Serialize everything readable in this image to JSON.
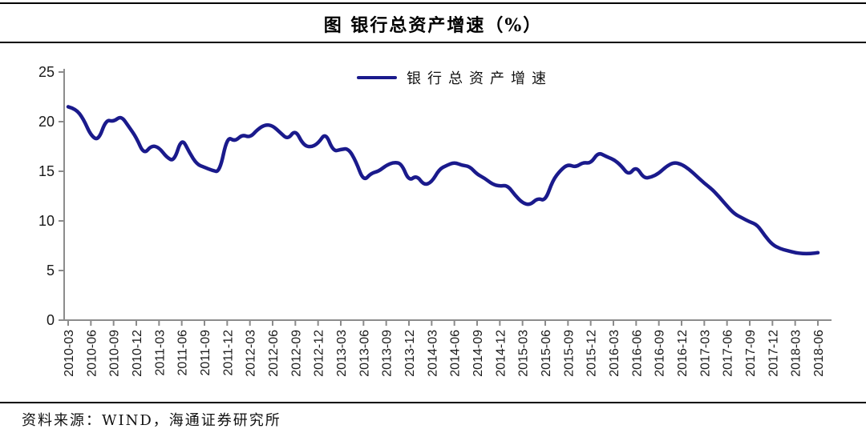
{
  "page": {
    "source_note": "资料来源：WIND，海通证券研究所"
  },
  "chart_data": {
    "type": "line",
    "title": "图 银行总资产增速（%）",
    "legend": [
      "银行总资产增速"
    ],
    "line_color": "#1a1a8c",
    "axis_color": "#8c8c8c",
    "label_color": "#1a1a1a",
    "ylim": [
      0,
      25
    ],
    "yticks": [
      0,
      5,
      10,
      15,
      20,
      25
    ],
    "grid": "off",
    "legend_position": "top-center",
    "x_tick_labels": [
      "2010-03",
      "2010-06",
      "2010-09",
      "2010-12",
      "2011-03",
      "2011-06",
      "2011-09",
      "2011-12",
      "2012-03",
      "2012-06",
      "2012-09",
      "2012-12",
      "2013-03",
      "2013-06",
      "2013-09",
      "2013-12",
      "2014-03",
      "2014-06",
      "2014-09",
      "2014-12",
      "2015-03",
      "2015-06",
      "2015-09",
      "2015-12",
      "2016-03",
      "2016-06",
      "2016-09",
      "2016-12",
      "2017-03",
      "2017-06",
      "2017-09",
      "2017-12",
      "2018-03",
      "2018-06"
    ],
    "x": [
      "2010-03",
      "2010-04",
      "2010-05",
      "2010-06",
      "2010-07",
      "2010-08",
      "2010-09",
      "2010-10",
      "2010-11",
      "2010-12",
      "2011-01",
      "2011-02",
      "2011-03",
      "2011-04",
      "2011-05",
      "2011-06",
      "2011-07",
      "2011-08",
      "2011-09",
      "2011-10",
      "2011-11",
      "2011-12",
      "2012-01",
      "2012-02",
      "2012-03",
      "2012-04",
      "2012-05",
      "2012-06",
      "2012-07",
      "2012-08",
      "2012-09",
      "2012-10",
      "2012-11",
      "2012-12",
      "2013-01",
      "2013-02",
      "2013-03",
      "2013-04",
      "2013-05",
      "2013-06",
      "2013-07",
      "2013-08",
      "2013-09",
      "2013-10",
      "2013-11",
      "2013-12",
      "2014-01",
      "2014-02",
      "2014-03",
      "2014-04",
      "2014-05",
      "2014-06",
      "2014-07",
      "2014-08",
      "2014-09",
      "2014-10",
      "2014-11",
      "2014-12",
      "2015-01",
      "2015-02",
      "2015-03",
      "2015-04",
      "2015-05",
      "2015-06",
      "2015-07",
      "2015-08",
      "2015-09",
      "2015-10",
      "2015-11",
      "2015-12",
      "2016-01",
      "2016-02",
      "2016-03",
      "2016-04",
      "2016-05",
      "2016-06",
      "2016-07",
      "2016-08",
      "2016-09",
      "2016-10",
      "2016-11",
      "2016-12",
      "2017-01",
      "2017-02",
      "2017-03",
      "2017-04",
      "2017-05",
      "2017-06",
      "2017-07",
      "2017-08",
      "2017-09",
      "2017-10",
      "2017-11",
      "2017-12",
      "2018-01",
      "2018-02",
      "2018-03",
      "2018-04",
      "2018-05",
      "2018-06"
    ],
    "values": [
      21.5,
      21.3,
      20.3,
      18.6,
      18.1,
      20.2,
      20.0,
      20.6,
      19.5,
      18.4,
      16.7,
      17.6,
      17.4,
      16.4,
      16.0,
      18.4,
      16.9,
      15.7,
      15.4,
      15.1,
      14.9,
      18.5,
      18.0,
      18.7,
      18.4,
      19.2,
      19.7,
      19.6,
      18.9,
      18.2,
      19.2,
      17.7,
      17.4,
      17.8,
      18.9,
      17.0,
      17.2,
      17.3,
      16.0,
      14.0,
      14.8,
      15.0,
      15.6,
      15.9,
      15.8,
      14.0,
      14.6,
      13.6,
      13.9,
      15.2,
      15.6,
      15.9,
      15.6,
      15.5,
      14.7,
      14.3,
      13.7,
      13.5,
      13.6,
      12.6,
      11.8,
      11.6,
      12.3,
      12.0,
      14.1,
      15.1,
      15.7,
      15.4,
      15.9,
      15.8,
      16.9,
      16.5,
      16.2,
      15.6,
      14.6,
      15.5,
      14.3,
      14.4,
      14.8,
      15.5,
      15.9,
      15.7,
      15.2,
      14.5,
      13.8,
      13.2,
      12.4,
      11.5,
      10.7,
      10.3,
      9.9,
      9.6,
      8.5,
      7.6,
      7.2,
      7.0,
      6.8,
      6.7,
      6.7,
      6.8
    ]
  }
}
